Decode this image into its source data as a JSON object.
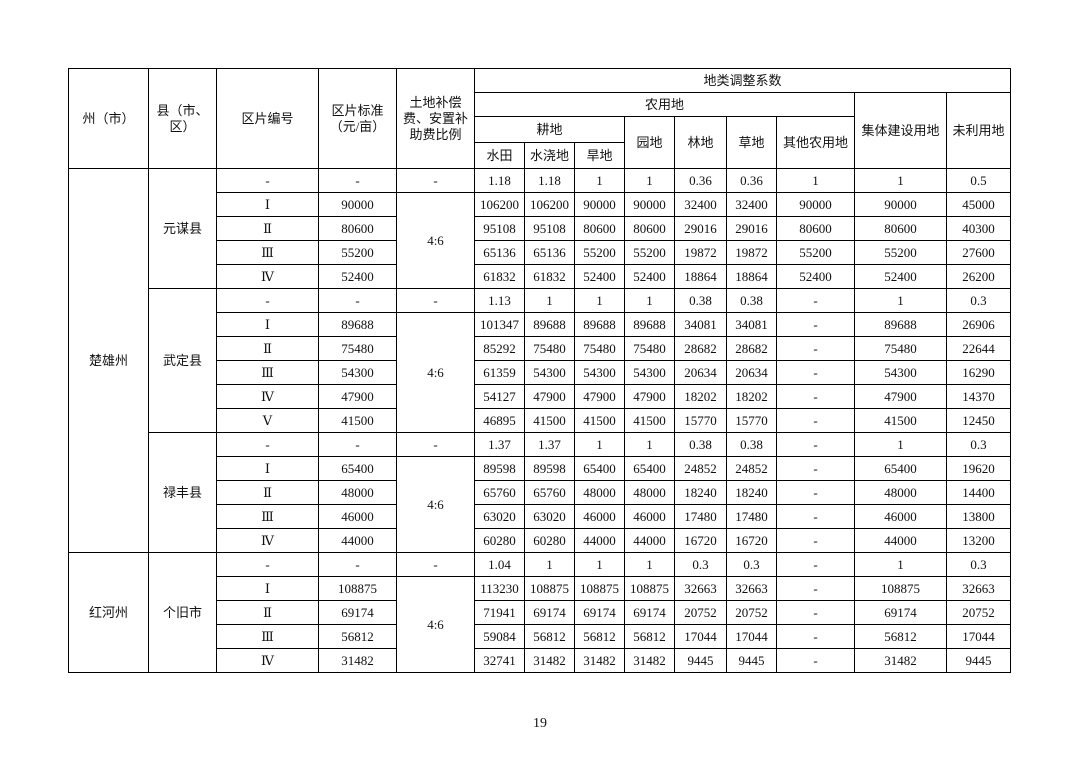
{
  "table": {
    "headers": {
      "prefecture": "州（市）",
      "county": "县（市、区）",
      "code": "区片编号",
      "standard": "区片标准（元/亩）",
      "ratio": "土地补偿费、安置补助费比例",
      "coef": "地类调整系数",
      "agri": "农用地",
      "arable": "耕地",
      "paddy": "水田",
      "irrigated": "水浇地",
      "dry": "旱地",
      "garden": "园地",
      "forest": "林地",
      "grass": "草地",
      "other_agri": "其他农用地",
      "construction": "集体建设用地",
      "unused": "未利用地"
    },
    "prefectures": [
      {
        "name": "楚雄州",
        "counties": [
          {
            "name": "元谋县",
            "coef_ratio": "-",
            "ratio": "4:6",
            "rows": [
              [
                "-",
                "-",
                "1.18",
                "1.18",
                "1",
                "1",
                "0.36",
                "0.36",
                "1",
                "1",
                "0.5"
              ],
              [
                "Ⅰ",
                "90000",
                "106200",
                "106200",
                "90000",
                "90000",
                "32400",
                "32400",
                "90000",
                "90000",
                "45000"
              ],
              [
                "Ⅱ",
                "80600",
                "95108",
                "95108",
                "80600",
                "80600",
                "29016",
                "29016",
                "80600",
                "80600",
                "40300"
              ],
              [
                "Ⅲ",
                "55200",
                "65136",
                "65136",
                "55200",
                "55200",
                "19872",
                "19872",
                "55200",
                "55200",
                "27600"
              ],
              [
                "Ⅳ",
                "52400",
                "61832",
                "61832",
                "52400",
                "52400",
                "18864",
                "18864",
                "52400",
                "52400",
                "26200"
              ]
            ]
          },
          {
            "name": "武定县",
            "coef_ratio": "-",
            "ratio": "4:6",
            "rows": [
              [
                "-",
                "-",
                "1.13",
                "1",
                "1",
                "1",
                "0.38",
                "0.38",
                "-",
                "1",
                "0.3"
              ],
              [
                "Ⅰ",
                "89688",
                "101347",
                "89688",
                "89688",
                "89688",
                "34081",
                "34081",
                "-",
                "89688",
                "26906"
              ],
              [
                "Ⅱ",
                "75480",
                "85292",
                "75480",
                "75480",
                "75480",
                "28682",
                "28682",
                "-",
                "75480",
                "22644"
              ],
              [
                "Ⅲ",
                "54300",
                "61359",
                "54300",
                "54300",
                "54300",
                "20634",
                "20634",
                "-",
                "54300",
                "16290"
              ],
              [
                "Ⅳ",
                "47900",
                "54127",
                "47900",
                "47900",
                "47900",
                "18202",
                "18202",
                "-",
                "47900",
                "14370"
              ],
              [
                "Ⅴ",
                "41500",
                "46895",
                "41500",
                "41500",
                "41500",
                "15770",
                "15770",
                "-",
                "41500",
                "12450"
              ]
            ]
          },
          {
            "name": "禄丰县",
            "coef_ratio": "-",
            "ratio": "4:6",
            "rows": [
              [
                "-",
                "-",
                "1.37",
                "1.37",
                "1",
                "1",
                "0.38",
                "0.38",
                "-",
                "1",
                "0.3"
              ],
              [
                "Ⅰ",
                "65400",
                "89598",
                "89598",
                "65400",
                "65400",
                "24852",
                "24852",
                "-",
                "65400",
                "19620"
              ],
              [
                "Ⅱ",
                "48000",
                "65760",
                "65760",
                "48000",
                "48000",
                "18240",
                "18240",
                "-",
                "48000",
                "14400"
              ],
              [
                "Ⅲ",
                "46000",
                "63020",
                "63020",
                "46000",
                "46000",
                "17480",
                "17480",
                "-",
                "46000",
                "13800"
              ],
              [
                "Ⅳ",
                "44000",
                "60280",
                "60280",
                "44000",
                "44000",
                "16720",
                "16720",
                "-",
                "44000",
                "13200"
              ]
            ]
          }
        ]
      },
      {
        "name": "红河州",
        "counties": [
          {
            "name": "个旧市",
            "coef_ratio": "-",
            "ratio": "4:6",
            "rows": [
              [
                "-",
                "-",
                "1.04",
                "1",
                "1",
                "1",
                "0.3",
                "0.3",
                "-",
                "1",
                "0.3"
              ],
              [
                "Ⅰ",
                "108875",
                "113230",
                "108875",
                "108875",
                "108875",
                "32663",
                "32663",
                "-",
                "108875",
                "32663"
              ],
              [
                "Ⅱ",
                "69174",
                "71941",
                "69174",
                "69174",
                "69174",
                "20752",
                "20752",
                "-",
                "69174",
                "20752"
              ],
              [
                "Ⅲ",
                "56812",
                "59084",
                "56812",
                "56812",
                "56812",
                "17044",
                "17044",
                "-",
                "56812",
                "17044"
              ],
              [
                "Ⅳ",
                "31482",
                "32741",
                "31482",
                "31482",
                "31482",
                "9445",
                "9445",
                "-",
                "31482",
                "9445"
              ]
            ]
          }
        ]
      }
    ]
  },
  "page_number": "19"
}
